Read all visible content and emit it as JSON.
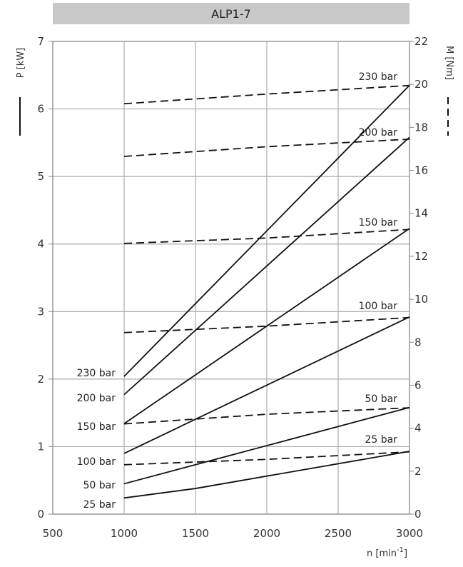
{
  "chart_data": {
    "type": "line",
    "title": "ALP1-7",
    "xlabel": "n [min",
    "xlabel_sup": "-1",
    "xlabel_close": "]",
    "ylabel_left": "P [kW]",
    "ylabel_right": "M [Nm]",
    "xlim": [
      500,
      3000
    ],
    "ylim_left": [
      0,
      7
    ],
    "ylim_right": [
      0,
      22
    ],
    "x_ticks": [
      500,
      1000,
      1500,
      2000,
      2500,
      3000
    ],
    "y_left_ticks": [
      0,
      1,
      2,
      3,
      4,
      5,
      6,
      7
    ],
    "y_right_ticks": [
      0,
      2,
      4,
      6,
      8,
      10,
      12,
      14,
      16,
      18,
      20,
      22
    ],
    "grid": true,
    "power_series": [
      {
        "name": "230 bar",
        "axis": "left",
        "x": [
          1000,
          3000
        ],
        "y": [
          2.04,
          6.35
        ]
      },
      {
        "name": "200 bar",
        "axis": "left",
        "x": [
          1000,
          3000
        ],
        "y": [
          1.77,
          5.58
        ]
      },
      {
        "name": "150 bar",
        "axis": "left",
        "x": [
          1000,
          3000
        ],
        "y": [
          1.34,
          4.23
        ]
      },
      {
        "name": "100 bar",
        "axis": "left",
        "x": [
          1000,
          3000
        ],
        "y": [
          0.9,
          2.92
        ]
      },
      {
        "name": "50 bar",
        "axis": "left",
        "x": [
          1000,
          3000
        ],
        "y": [
          0.45,
          1.58
        ]
      },
      {
        "name": "25 bar",
        "axis": "left",
        "x": [
          1000,
          1500,
          3000
        ],
        "y": [
          0.24,
          0.38,
          0.93
        ]
      }
    ],
    "torque_series": [
      {
        "name": "230 bar",
        "axis": "right",
        "x": [
          1000,
          2000,
          3000
        ],
        "y": [
          19.1,
          19.55,
          19.95
        ]
      },
      {
        "name": "200 bar",
        "axis": "right",
        "x": [
          1000,
          2000,
          3000
        ],
        "y": [
          16.65,
          17.1,
          17.45
        ]
      },
      {
        "name": "150 bar",
        "axis": "right",
        "x": [
          1000,
          2000,
          3000
        ],
        "y": [
          12.6,
          12.85,
          13.25
        ]
      },
      {
        "name": "100 bar",
        "axis": "right",
        "x": [
          1000,
          2000,
          3000
        ],
        "y": [
          8.45,
          8.75,
          9.15
        ]
      },
      {
        "name": "50 bar",
        "axis": "right",
        "x": [
          1000,
          2000,
          3000
        ],
        "y": [
          4.2,
          4.65,
          4.95
        ]
      },
      {
        "name": "25 bar",
        "axis": "right",
        "x": [
          1000,
          2000,
          3000
        ],
        "y": [
          2.3,
          2.55,
          2.9
        ]
      }
    ],
    "left_labels": [
      "230 bar",
      "200 bar",
      "150 bar",
      "100 bar",
      "50 bar",
      "25 bar"
    ],
    "right_labels": [
      "230 bar",
      "200 bar",
      "150 bar",
      "100 bar",
      "50 bar",
      "25 bar"
    ]
  }
}
